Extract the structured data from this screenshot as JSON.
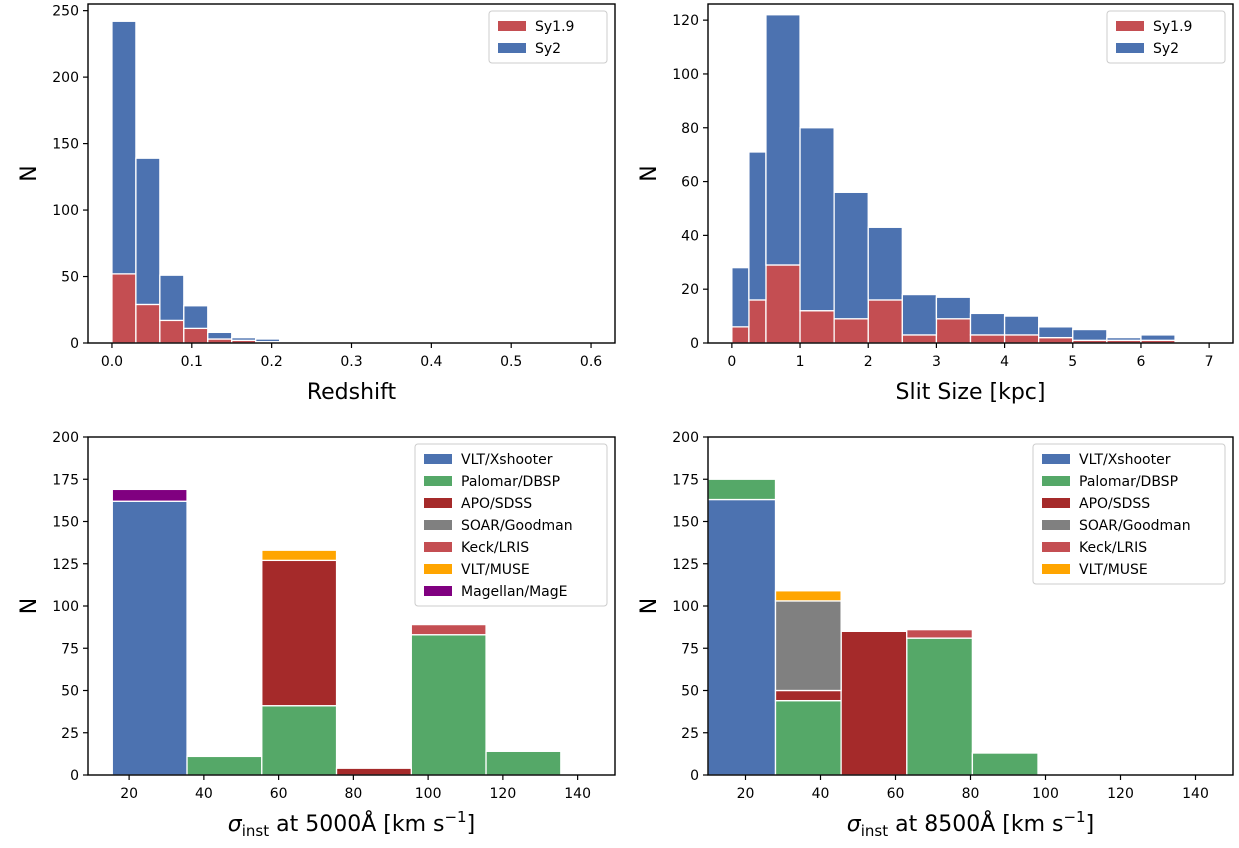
{
  "chart_data": [
    {
      "type": "bar",
      "stacked": true,
      "xlabel": "Redshift",
      "ylabel": "N",
      "xlim": [
        -0.03,
        0.63
      ],
      "ylim": [
        0,
        255
      ],
      "xticks": [
        0.0,
        0.1,
        0.2,
        0.3,
        0.4,
        0.5,
        0.6
      ],
      "xticklabels": [
        "0.0",
        "0.1",
        "0.2",
        "0.3",
        "0.4",
        "0.5",
        "0.6"
      ],
      "yticks": [
        0,
        50,
        100,
        150,
        200,
        250
      ],
      "yticklabels": [
        "0",
        "50",
        "100",
        "150",
        "200",
        "250"
      ],
      "legend_position": "top-right",
      "bin_edges": [
        0.0,
        0.03,
        0.06,
        0.09,
        0.12,
        0.15,
        0.18,
        0.21,
        0.24
      ],
      "series": [
        {
          "name": "Sy1.9",
          "color": "#c44e52",
          "values": [
            52,
            29,
            17,
            11,
            3,
            2,
            1,
            0
          ]
        },
        {
          "name": "Sy2",
          "color": "#4c72b0",
          "values": [
            190,
            110,
            34,
            17,
            5,
            2,
            2,
            1
          ]
        }
      ]
    },
    {
      "type": "bar",
      "stacked": true,
      "xlabel": "Slit Size [kpc]",
      "ylabel": "N",
      "xlim": [
        -0.35,
        7.35
      ],
      "ylim": [
        0,
        126
      ],
      "xticks": [
        0,
        1,
        2,
        3,
        4,
        5,
        6,
        7
      ],
      "xticklabels": [
        "0",
        "1",
        "2",
        "3",
        "4",
        "5",
        "6",
        "7"
      ],
      "yticks": [
        0,
        20,
        40,
        60,
        80,
        100,
        120
      ],
      "yticklabels": [
        "0",
        "20",
        "40",
        "60",
        "80",
        "100",
        "120"
      ],
      "legend_position": "top-right",
      "bin_edges": [
        0.0,
        0.25,
        0.5,
        1.0,
        1.5,
        2.0,
        2.5,
        3.0,
        3.5,
        4.0,
        4.5,
        5.0,
        5.5,
        6.0,
        6.5
      ],
      "series": [
        {
          "name": "Sy1.9",
          "color": "#c44e52",
          "values": [
            6,
            16,
            29,
            12,
            9,
            16,
            3,
            9,
            3,
            3,
            2,
            1,
            1,
            1
          ]
        },
        {
          "name": "Sy2",
          "color": "#4c72b0",
          "values": [
            22,
            55,
            93,
            68,
            47,
            27,
            15,
            8,
            8,
            7,
            4,
            4,
            1,
            2
          ]
        }
      ]
    },
    {
      "type": "bar",
      "stacked": true,
      "xlabel_prefix": "σ",
      "xlabel_sub": "inst",
      "xlabel_main": " at 5000Å [km s",
      "xlabel_sup": "−1",
      "xlabel_close": "]",
      "ylabel": "N",
      "xlim": [
        9,
        150
      ],
      "ylim": [
        0,
        200
      ],
      "xticks": [
        20,
        40,
        60,
        80,
        100,
        120,
        140
      ],
      "xticklabels": [
        "20",
        "40",
        "60",
        "80",
        "100",
        "120",
        "140"
      ],
      "yticks": [
        0,
        25,
        50,
        75,
        100,
        125,
        150,
        175,
        200
      ],
      "yticklabels": [
        "0",
        "25",
        "50",
        "75",
        "100",
        "125",
        "150",
        "175",
        "200"
      ],
      "legend_position": "top-right",
      "bin_edges": [
        15.5,
        35.5,
        55.5,
        75.5,
        95.5,
        115.5,
        135.5
      ],
      "series": [
        {
          "name": "VLT/Xshooter",
          "color": "#4c72b0",
          "values": [
            162,
            0,
            0,
            0,
            0,
            0
          ]
        },
        {
          "name": "Palomar/DBSP",
          "color": "#55a868",
          "values": [
            0,
            11,
            41,
            0,
            83,
            14
          ]
        },
        {
          "name": "APO/SDSS",
          "color": "#a52a2a",
          "values": [
            0,
            0,
            86,
            4,
            0,
            0
          ]
        },
        {
          "name": "SOAR/Goodman",
          "color": "#808080",
          "values": [
            0,
            0,
            0,
            0,
            0,
            0
          ]
        },
        {
          "name": "Keck/LRIS",
          "color": "#c44e52",
          "values": [
            0,
            0,
            0,
            0,
            6,
            0
          ]
        },
        {
          "name": "VLT/MUSE",
          "color": "#ffa500",
          "values": [
            0,
            0,
            6,
            0,
            0,
            0
          ]
        },
        {
          "name": "Magellan/MagE",
          "color": "#800080",
          "values": [
            7,
            0,
            0,
            0,
            0,
            0
          ]
        }
      ]
    },
    {
      "type": "bar",
      "stacked": true,
      "xlabel_prefix": "σ",
      "xlabel_sub": "inst",
      "xlabel_main": " at 8500Å [km s",
      "xlabel_sup": "−1",
      "xlabel_close": "]",
      "ylabel": "N",
      "xlim": [
        10,
        150
      ],
      "ylim": [
        0,
        200
      ],
      "xticks": [
        20,
        40,
        60,
        80,
        100,
        120,
        140
      ],
      "xticklabels": [
        "20",
        "40",
        "60",
        "80",
        "100",
        "120",
        "140"
      ],
      "yticks": [
        0,
        25,
        50,
        75,
        100,
        125,
        150,
        175,
        200
      ],
      "yticklabels": [
        "0",
        "25",
        "50",
        "75",
        "100",
        "125",
        "150",
        "175",
        "200"
      ],
      "legend_position": "top-right",
      "bin_edges": [
        10,
        28,
        45.5,
        63,
        80.5,
        98
      ],
      "series": [
        {
          "name": "VLT/Xshooter",
          "color": "#4c72b0",
          "values": [
            163,
            0,
            0,
            0,
            0
          ]
        },
        {
          "name": "Palomar/DBSP",
          "color": "#55a868",
          "values": [
            12,
            44,
            0,
            81,
            13
          ]
        },
        {
          "name": "APO/SDSS",
          "color": "#a52a2a",
          "values": [
            0,
            6,
            85,
            0,
            0
          ]
        },
        {
          "name": "SOAR/Goodman",
          "color": "#808080",
          "values": [
            0,
            53,
            0,
            0,
            0
          ]
        },
        {
          "name": "Keck/LRIS",
          "color": "#c44e52",
          "values": [
            0,
            0,
            0,
            5,
            0
          ]
        },
        {
          "name": "VLT/MUSE",
          "color": "#ffa500",
          "values": [
            0,
            6,
            0,
            0,
            0
          ]
        }
      ]
    }
  ]
}
